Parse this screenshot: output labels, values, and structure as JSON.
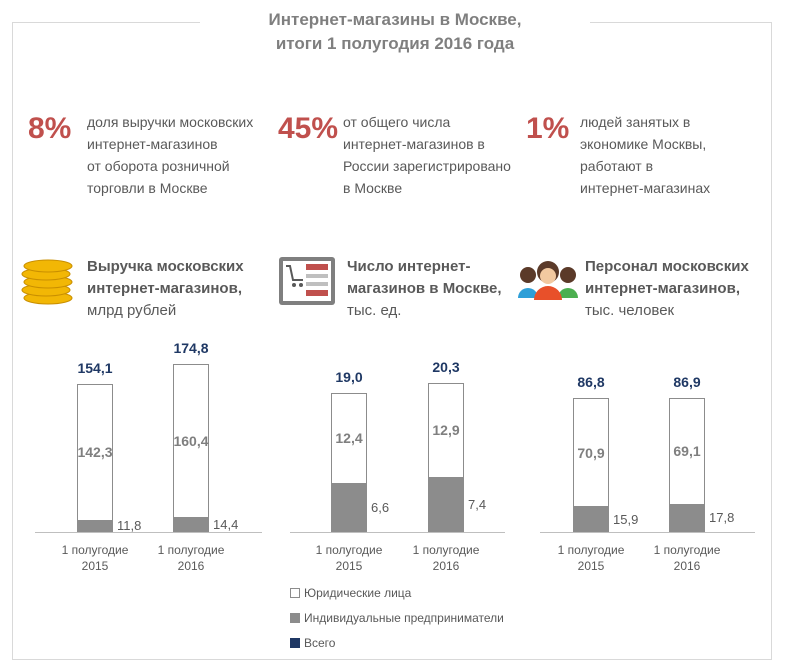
{
  "header": {
    "title": [
      "Интернет-магазины в Москве,",
      "итоги 1 полугодия 2016 года"
    ]
  },
  "stats": [
    {
      "value": "8%",
      "lines": [
        "доля выручки московских",
        "интернет-магазинов",
        "от оборота розничной",
        "торговли в Москве"
      ]
    },
    {
      "value": "45%",
      "lines": [
        "от общего числа",
        "интернет-магазинов в",
        "России зарегистрировано",
        "в Москве"
      ]
    },
    {
      "value": "1%",
      "lines": [
        "людей занятых в",
        "экономике Москвы,",
        "работают в",
        "интернет-магазинах"
      ]
    }
  ],
  "legend": [
    {
      "name": "Юридические лица",
      "color": "#ffffff"
    },
    {
      "name": "Индивидуальные предприниматели",
      "color": "#8c8c8c"
    },
    {
      "name": "Всего",
      "color": "#1f3864"
    }
  ],
  "chart_data": [
    {
      "type": "bar",
      "stacked": true,
      "title": "Выручка московских интернет-магазинов,",
      "subtitle": "млрд рублей",
      "categories": [
        "1 полугодие 2015",
        "1 полугодие 2016"
      ],
      "series": [
        {
          "values": [
            142.3,
            160.4
          ],
          "value_labels": [
            "142,3",
            "160,4"
          ]
        },
        {
          "values": [
            11.8,
            14.4
          ],
          "value_labels": [
            "11,8",
            "14,4"
          ]
        }
      ],
      "totals": {
        "values": [
          154.1,
          174.8
        ],
        "value_labels": [
          "154,1",
          "174,8"
        ]
      }
    },
    {
      "type": "bar",
      "stacked": true,
      "title": "Число интернет-магазинов в Москве,",
      "subtitle": "тыс. ед.",
      "categories": [
        "1 полугодие 2015",
        "1 полугодие 2016"
      ],
      "series": [
        {
          "values": [
            12.4,
            12.9
          ],
          "value_labels": [
            "12,4",
            "12,9"
          ]
        },
        {
          "values": [
            6.6,
            7.4
          ],
          "value_labels": [
            "6,6",
            "7,4"
          ]
        }
      ],
      "totals": {
        "values": [
          19.0,
          20.3
        ],
        "value_labels": [
          "19,0",
          "20,3"
        ]
      }
    },
    {
      "type": "bar",
      "stacked": true,
      "title": "Персонал московских интернет-магазинов,",
      "subtitle": "тыс. человек",
      "categories": [
        "1 полугодие 2015",
        "1 полугодие 2016"
      ],
      "series": [
        {
          "values": [
            70.9,
            69.1
          ],
          "value_labels": [
            "70,9",
            "69,1"
          ]
        },
        {
          "values": [
            15.9,
            17.8
          ],
          "value_labels": [
            "15,9",
            "17,8"
          ]
        }
      ],
      "totals": {
        "values": [
          86.8,
          86.9
        ],
        "value_labels": [
          "86,8",
          "86,9"
        ]
      }
    }
  ]
}
